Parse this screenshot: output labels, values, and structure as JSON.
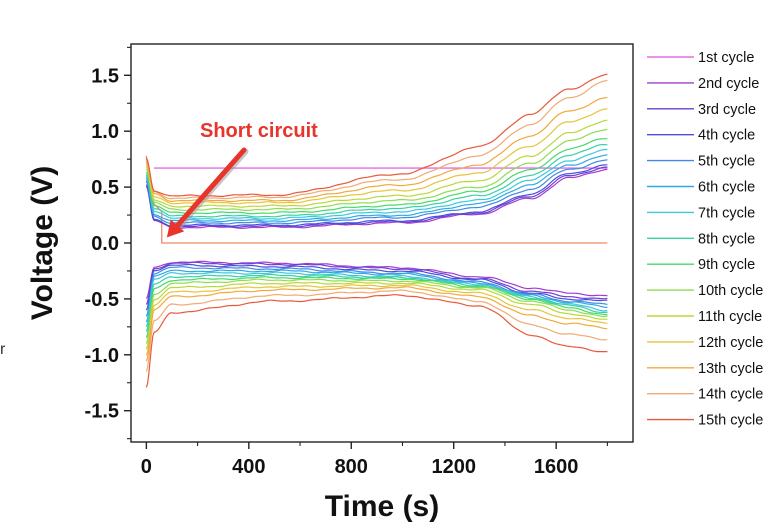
{
  "chart_data": {
    "type": "line",
    "title": "",
    "xlabel": "Time (s)",
    "ylabel": "Voltage (V)",
    "xlim": [
      -60,
      1900
    ],
    "ylim": [
      -1.78,
      1.78
    ],
    "xticks": [
      0,
      400,
      800,
      1200,
      1600
    ],
    "xtick_labels": [
      "0",
      "400",
      "800",
      "1200",
      "1600"
    ],
    "yticks": [
      1.5,
      1.0,
      0.5,
      0.0,
      -0.5,
      -1.0,
      -1.5
    ],
    "ytick_labels": [
      "1.5",
      "1.0",
      "0.5",
      "0.0",
      "-0.5",
      "-1.0",
      "-1.5"
    ],
    "grid": false,
    "legend_position": "right",
    "annotation": {
      "text": "Short circuit",
      "color": "#e8342a",
      "points_to": {
        "x": 80,
        "y": 0.05
      }
    },
    "edge_text": "r",
    "series": [
      {
        "name": "1st cycle",
        "color": "#e66be6",
        "shorted": true,
        "upper_value": 0.67,
        "lower_value": 0.67
      },
      {
        "name": "2nd cycle",
        "color": "#a23bd0",
        "x": [
          0,
          30,
          100,
          500,
          1000,
          1300,
          1500,
          1650,
          1800
        ],
        "upper": [
          0.55,
          0.2,
          0.14,
          0.14,
          0.18,
          0.26,
          0.4,
          0.58,
          0.66
        ],
        "lower": [
          -0.5,
          -0.22,
          -0.17,
          -0.18,
          -0.22,
          -0.3,
          -0.4,
          -0.45,
          -0.47
        ]
      },
      {
        "name": "3rd cycle",
        "color": "#6a3fd6",
        "x": [
          0,
          30,
          100,
          500,
          1000,
          1300,
          1500,
          1650,
          1800
        ],
        "upper": [
          0.5,
          0.2,
          0.15,
          0.15,
          0.19,
          0.27,
          0.42,
          0.6,
          0.68
        ],
        "lower": [
          -0.55,
          -0.23,
          -0.18,
          -0.19,
          -0.23,
          -0.32,
          -0.43,
          -0.48,
          -0.5
        ]
      },
      {
        "name": "4th cycle",
        "color": "#4a4ed8",
        "x": [
          0,
          30,
          100,
          500,
          1000,
          1300,
          1500,
          1650,
          1800
        ],
        "upper": [
          0.52,
          0.21,
          0.16,
          0.16,
          0.2,
          0.28,
          0.44,
          0.62,
          0.7
        ],
        "lower": [
          -0.6,
          -0.24,
          -0.2,
          -0.21,
          -0.25,
          -0.33,
          -0.45,
          -0.5,
          -0.52
        ]
      },
      {
        "name": "5th cycle",
        "color": "#3f8ae6",
        "x": [
          0,
          30,
          100,
          500,
          1000,
          1300,
          1500,
          1650,
          1800
        ],
        "upper": [
          0.55,
          0.24,
          0.18,
          0.18,
          0.23,
          0.32,
          0.48,
          0.66,
          0.74
        ],
        "lower": [
          -0.65,
          -0.27,
          -0.22,
          -0.23,
          -0.27,
          -0.35,
          -0.46,
          -0.52,
          -0.55
        ]
      },
      {
        "name": "6th cycle",
        "color": "#2fa9e3",
        "x": [
          0,
          30,
          100,
          500,
          1000,
          1300,
          1500,
          1650,
          1800
        ],
        "upper": [
          0.58,
          0.26,
          0.2,
          0.2,
          0.25,
          0.35,
          0.52,
          0.7,
          0.78
        ],
        "lower": [
          -0.7,
          -0.3,
          -0.25,
          -0.25,
          -0.28,
          -0.36,
          -0.47,
          -0.53,
          -0.57
        ]
      },
      {
        "name": "7th cycle",
        "color": "#3ec6dd",
        "x": [
          0,
          30,
          100,
          500,
          1000,
          1300,
          1500,
          1650,
          1800
        ],
        "upper": [
          0.6,
          0.29,
          0.22,
          0.22,
          0.28,
          0.38,
          0.56,
          0.74,
          0.83
        ],
        "lower": [
          -0.75,
          -0.33,
          -0.27,
          -0.27,
          -0.3,
          -0.37,
          -0.48,
          -0.55,
          -0.6
        ]
      },
      {
        "name": "8th cycle",
        "color": "#38d1a4",
        "x": [
          0,
          30,
          100,
          500,
          1000,
          1300,
          1500,
          1650,
          1800
        ],
        "upper": [
          0.62,
          0.31,
          0.24,
          0.24,
          0.31,
          0.42,
          0.6,
          0.79,
          0.88
        ],
        "lower": [
          -0.8,
          -0.37,
          -0.3,
          -0.29,
          -0.31,
          -0.38,
          -0.49,
          -0.56,
          -0.62
        ]
      },
      {
        "name": "9th cycle",
        "color": "#45d86a",
        "x": [
          0,
          30,
          100,
          500,
          1000,
          1300,
          1500,
          1650,
          1800
        ],
        "upper": [
          0.64,
          0.33,
          0.27,
          0.27,
          0.34,
          0.46,
          0.65,
          0.84,
          0.94
        ],
        "lower": [
          -0.85,
          -0.41,
          -0.33,
          -0.31,
          -0.32,
          -0.39,
          -0.5,
          -0.58,
          -0.64
        ]
      },
      {
        "name": "10th cycle",
        "color": "#8fdc52",
        "x": [
          0,
          30,
          100,
          500,
          1000,
          1300,
          1500,
          1650,
          1800
        ],
        "upper": [
          0.66,
          0.36,
          0.3,
          0.3,
          0.38,
          0.5,
          0.71,
          0.91,
          1.02
        ],
        "lower": [
          -0.9,
          -0.46,
          -0.36,
          -0.33,
          -0.34,
          -0.4,
          -0.52,
          -0.6,
          -0.66
        ]
      },
      {
        "name": "11th cycle",
        "color": "#b8d83a",
        "x": [
          0,
          30,
          100,
          500,
          1000,
          1300,
          1500,
          1650,
          1800
        ],
        "upper": [
          0.68,
          0.38,
          0.33,
          0.33,
          0.42,
          0.56,
          0.78,
          0.98,
          1.1
        ],
        "lower": [
          -0.95,
          -0.5,
          -0.4,
          -0.36,
          -0.36,
          -0.42,
          -0.55,
          -0.63,
          -0.69
        ]
      },
      {
        "name": "12th cycle",
        "color": "#e6c43a",
        "x": [
          0,
          30,
          100,
          500,
          1000,
          1300,
          1500,
          1650,
          1800
        ],
        "upper": [
          0.7,
          0.41,
          0.36,
          0.36,
          0.47,
          0.63,
          0.87,
          1.08,
          1.2
        ],
        "lower": [
          -1.0,
          -0.55,
          -0.44,
          -0.39,
          -0.38,
          -0.45,
          -0.6,
          -0.67,
          -0.72
        ]
      },
      {
        "name": "13th cycle",
        "color": "#f0a93c",
        "x": [
          0,
          30,
          100,
          500,
          1000,
          1300,
          1500,
          1650,
          1800
        ],
        "upper": [
          0.72,
          0.44,
          0.38,
          0.38,
          0.52,
          0.7,
          0.96,
          1.18,
          1.3
        ],
        "lower": [
          -1.05,
          -0.6,
          -0.48,
          -0.42,
          -0.4,
          -0.48,
          -0.65,
          -0.72,
          -0.76
        ]
      },
      {
        "name": "14th cycle",
        "color": "#f0aa72",
        "x": [
          0,
          30,
          100,
          500,
          1000,
          1300,
          1500,
          1650,
          1800
        ],
        "upper": [
          0.74,
          0.46,
          0.4,
          0.41,
          0.57,
          0.78,
          1.06,
          1.3,
          1.45
        ],
        "lower": [
          -1.15,
          -0.7,
          -0.55,
          -0.47,
          -0.43,
          -0.52,
          -0.73,
          -0.82,
          -0.86
        ]
      },
      {
        "name": "15th cycle",
        "color": "#e8593a",
        "x": [
          0,
          30,
          100,
          500,
          1000,
          1300,
          1500,
          1650,
          1800
        ],
        "upper": [
          0.76,
          0.47,
          0.42,
          0.43,
          0.62,
          0.86,
          1.15,
          1.38,
          1.5
        ],
        "lower": [
          -1.3,
          -0.8,
          -0.62,
          -0.52,
          -0.47,
          -0.56,
          -0.82,
          -0.93,
          -0.97
        ]
      }
    ]
  }
}
